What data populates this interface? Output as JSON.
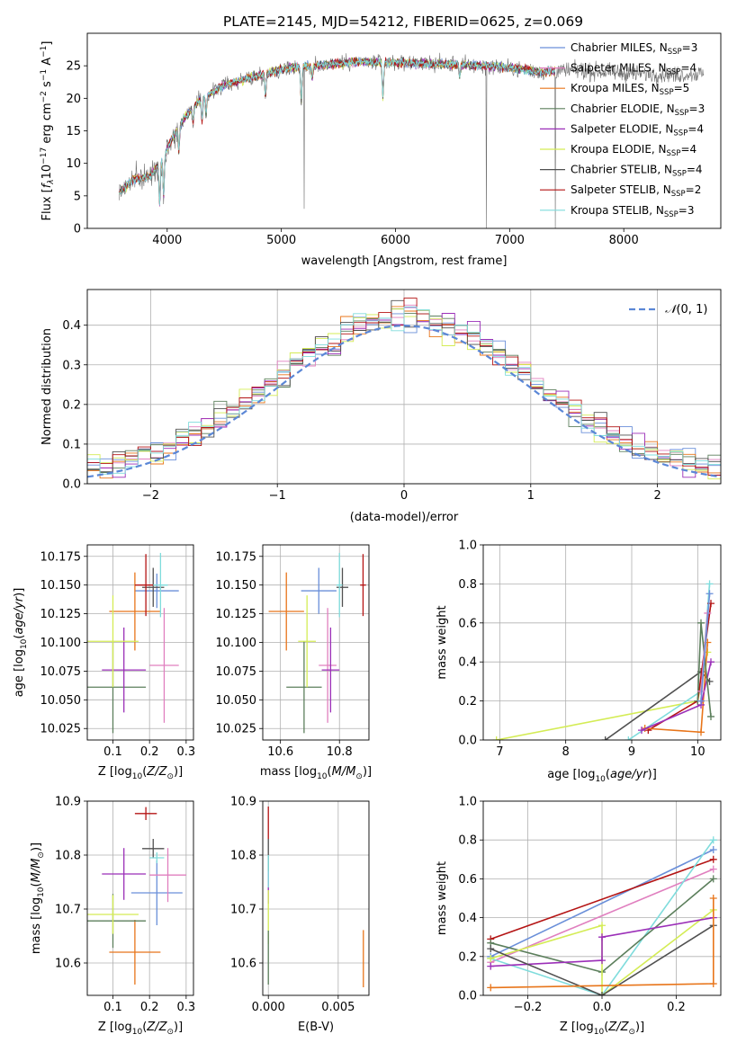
{
  "figure_title": "PLATE=2145, MJD=54212, FIBERID=0625, z=0.069",
  "colors": {
    "chabrier_miles": "#6a8fd9",
    "salpeter_miles": "#e07fbf",
    "kroupa_miles": "#e8751a",
    "chabrier_elodie": "#5c7f5c",
    "salpeter_elodie": "#9b2fb8",
    "kroupa_elodie": "#d4ec55",
    "chabrier_stelib": "#505050",
    "salpeter_stelib": "#b41414",
    "kroupa_stelib": "#7fdcdc",
    "gaussian": "#5b87d6",
    "data_spectrum": "#707070"
  },
  "chart_data": [
    {
      "id": "spectrum",
      "type": "line",
      "xlabel": "wavelength [Angstrom, rest frame]",
      "ylabel": "Flux [f_λ 10⁻¹⁷ erg cm⁻² s⁻¹ A⁻¹]",
      "xlim": [
        3300,
        8850
      ],
      "ylim": [
        0,
        30
      ],
      "xticks": [
        4000,
        5000,
        6000,
        7000,
        8000
      ],
      "yticks": [
        0,
        5,
        10,
        15,
        20,
        25
      ],
      "grid": false,
      "legend_position": "right",
      "legend": [
        {
          "key": "chabrier_miles",
          "base": "Chabrier MILES, N",
          "sub": "SSP",
          "tail": "=3"
        },
        {
          "key": "salpeter_miles",
          "base": "Salpeter MILES, N",
          "sub": "SSP",
          "tail": "=4"
        },
        {
          "key": "kroupa_miles",
          "base": "Kroupa MILES, N",
          "sub": "SSP",
          "tail": "=5"
        },
        {
          "key": "chabrier_elodie",
          "base": "Chabrier ELODIE, N",
          "sub": "SSP",
          "tail": "=3"
        },
        {
          "key": "salpeter_elodie",
          "base": "Salpeter ELODIE, N",
          "sub": "SSP",
          "tail": "=4"
        },
        {
          "key": "kroupa_elodie",
          "base": "Kroupa ELODIE, N",
          "sub": "SSP",
          "tail": "=4"
        },
        {
          "key": "chabrier_stelib",
          "base": "Chabrier STELIB, N",
          "sub": "SSP",
          "tail": "=4"
        },
        {
          "key": "salpeter_stelib",
          "base": "Salpeter STELIB, N",
          "sub": "SSP",
          "tail": "=2"
        },
        {
          "key": "kroupa_stelib",
          "base": "Kroupa STELIB, N",
          "sub": "SSP",
          "tail": "=3"
        }
      ],
      "continuum": [
        [
          3580,
          5.5
        ],
        [
          3700,
          7.5
        ],
        [
          3850,
          8.0
        ],
        [
          3950,
          10.5
        ],
        [
          4050,
          14.0
        ],
        [
          4150,
          17.0
        ],
        [
          4300,
          20.0
        ],
        [
          4500,
          22.0
        ],
        [
          4700,
          23.0
        ],
        [
          4900,
          24.0
        ],
        [
          5100,
          24.8
        ],
        [
          5300,
          25.0
        ],
        [
          5600,
          25.6
        ],
        [
          6000,
          25.5
        ],
        [
          6400,
          25.3
        ],
        [
          6800,
          25.0
        ],
        [
          7100,
          24.5
        ],
        [
          7300,
          24.0
        ],
        [
          7400,
          24.2
        ],
        [
          7600,
          24.2
        ],
        [
          7800,
          24.0
        ],
        [
          8100,
          23.8
        ],
        [
          8500,
          23.6
        ],
        [
          8700,
          23.8
        ]
      ],
      "model_extent": [
        3580,
        7400
      ],
      "absorption_lines": [
        [
          3934,
          7
        ],
        [
          3969,
          7
        ],
        [
          4102,
          4
        ],
        [
          4227,
          2.5
        ],
        [
          4305,
          4
        ],
        [
          4341,
          3
        ],
        [
          4861,
          4
        ],
        [
          5175,
          6
        ],
        [
          5270,
          2
        ],
        [
          5890,
          6
        ],
        [
          6563,
          2
        ]
      ],
      "spikes": [
        [
          5200,
          3
        ],
        [
          6795,
          0
        ],
        [
          7400,
          0
        ]
      ]
    },
    {
      "id": "residual_hist",
      "type": "histogram",
      "xlabel": "(data-model)/error",
      "ylabel": "Normed distribution",
      "xlim": [
        -2.5,
        2.5
      ],
      "ylim": [
        0,
        0.49
      ],
      "xticks": [
        -2,
        -1,
        0,
        1,
        2
      ],
      "yticks": [
        0,
        0.1,
        0.2,
        0.3,
        0.4
      ],
      "grid": true,
      "bin_width": 0.1,
      "legend_label": "N(0,1)",
      "legend_position": "top-right"
    },
    {
      "id": "age_vs_Z",
      "type": "errorbar",
      "xlabel": "Z [log10(Z/Z⊙)]",
      "ylabel": "age [log10(age/yr)]",
      "xlim": [
        0.03,
        0.32
      ],
      "ylim": [
        10.015,
        10.185
      ],
      "xticks": [
        0.1,
        0.2,
        0.3
      ],
      "yticks": [
        10.025,
        10.05,
        10.075,
        10.1,
        10.125,
        10.15,
        10.175
      ],
      "grid": true,
      "points": [
        {
          "key": "chabrier_miles",
          "x": 0.22,
          "xerr": 0.06,
          "y": 10.145,
          "yerr": 0.015
        },
        {
          "key": "salpeter_miles",
          "x": 0.24,
          "xerr": 0.04,
          "y": 10.08,
          "yerr": 0.05
        },
        {
          "key": "kroupa_miles",
          "x": 0.16,
          "xerr": 0.07,
          "y": 10.127,
          "yerr": 0.034
        },
        {
          "key": "chabrier_elodie",
          "x": 0.1,
          "xerr": 0.09,
          "y": 10.061,
          "yerr": 0.04
        },
        {
          "key": "salpeter_elodie",
          "x": 0.13,
          "xerr": 0.06,
          "y": 10.076,
          "yerr": 0.037
        },
        {
          "key": "kroupa_elodie",
          "x": 0.1,
          "xerr": 0.07,
          "y": 10.101,
          "yerr": 0.04
        },
        {
          "key": "chabrier_stelib",
          "x": 0.21,
          "xerr": 0.03,
          "y": 10.148,
          "yerr": 0.017
        },
        {
          "key": "salpeter_stelib",
          "x": 0.19,
          "xerr": 0.03,
          "y": 10.15,
          "yerr": 0.027
        },
        {
          "key": "kroupa_stelib",
          "x": 0.23,
          "xerr": 0.02,
          "y": 10.15,
          "yerr": 0.028
        }
      ]
    },
    {
      "id": "age_vs_mass",
      "type": "errorbar",
      "xlabel": "mass [log10(M/M⊙)]",
      "ylabel": "",
      "xlim": [
        10.54,
        10.9
      ],
      "ylim": [
        10.015,
        10.185
      ],
      "xticks": [
        10.6,
        10.8
      ],
      "yticks": [
        10.025,
        10.05,
        10.075,
        10.1,
        10.125,
        10.15,
        10.175
      ],
      "grid": true,
      "points": [
        {
          "key": "chabrier_miles",
          "x": 10.73,
          "xerr": 0.06,
          "y": 10.145,
          "yerr": 0.02
        },
        {
          "key": "salpeter_miles",
          "x": 10.76,
          "xerr": 0.03,
          "y": 10.08,
          "yerr": 0.05
        },
        {
          "key": "kroupa_miles",
          "x": 10.62,
          "xerr": 0.06,
          "y": 10.127,
          "yerr": 0.034
        },
        {
          "key": "chabrier_elodie",
          "x": 10.68,
          "xerr": 0.06,
          "y": 10.061,
          "yerr": 0.04
        },
        {
          "key": "salpeter_elodie",
          "x": 10.77,
          "xerr": 0.03,
          "y": 10.076,
          "yerr": 0.037
        },
        {
          "key": "kroupa_elodie",
          "x": 10.69,
          "xerr": 0.03,
          "y": 10.101,
          "yerr": 0.04
        },
        {
          "key": "chabrier_stelib",
          "x": 10.81,
          "xerr": 0.02,
          "y": 10.148,
          "yerr": 0.017
        },
        {
          "key": "salpeter_stelib",
          "x": 10.88,
          "xerr": 0.01,
          "y": 10.15,
          "yerr": 0.027
        },
        {
          "key": "kroupa_stelib",
          "x": 10.8,
          "xerr": 0.01,
          "y": 10.15,
          "yerr": 0.028
        }
      ]
    },
    {
      "id": "weight_vs_age",
      "type": "line",
      "xlabel": "age [log10(age/yr)]",
      "ylabel": "mass weight",
      "xlim": [
        6.75,
        10.35
      ],
      "ylim": [
        0,
        1
      ],
      "xticks": [
        7,
        8,
        9,
        10
      ],
      "yticks": [
        0,
        0.2,
        0.4,
        0.6,
        0.8,
        1.0
      ],
      "grid": true,
      "series": [
        {
          "key": "kroupa_elodie",
          "points": [
            [
              6.95,
              0.0
            ],
            [
              10.0,
              0.2
            ],
            [
              10.15,
              0.45
            ]
          ]
        },
        {
          "key": "chabrier_stelib",
          "points": [
            [
              8.6,
              0.0
            ],
            [
              10.05,
              0.35
            ],
            [
              10.18,
              0.3
            ]
          ]
        },
        {
          "key": "kroupa_stelib",
          "points": [
            [
              8.95,
              0.0
            ],
            [
              10.05,
              0.25
            ],
            [
              10.18,
              0.8
            ]
          ]
        },
        {
          "key": "salpeter_stelib",
          "points": [
            [
              9.25,
              0.05
            ],
            [
              10.0,
              0.2
            ],
            [
              10.2,
              0.7
            ]
          ]
        },
        {
          "key": "kroupa_miles",
          "points": [
            [
              9.2,
              0.06
            ],
            [
              10.05,
              0.04
            ],
            [
              10.15,
              0.5
            ]
          ]
        },
        {
          "key": "salpeter_elodie",
          "points": [
            [
              9.15,
              0.05
            ],
            [
              10.05,
              0.18
            ],
            [
              10.2,
              0.4
            ]
          ]
        },
        {
          "key": "chabrier_elodie",
          "points": [
            [
              10.0,
              0.2
            ],
            [
              10.05,
              0.6
            ],
            [
              10.2,
              0.12
            ]
          ]
        },
        {
          "key": "salpeter_miles",
          "points": [
            [
              10.05,
              0.25
            ],
            [
              10.15,
              0.65
            ]
          ]
        },
        {
          "key": "chabrier_miles",
          "points": [
            [
              10.05,
              0.2
            ],
            [
              10.18,
              0.75
            ]
          ]
        }
      ]
    },
    {
      "id": "mass_vs_Z",
      "type": "errorbar",
      "xlabel": "Z [log10(Z/Z⊙)]",
      "ylabel": "mass [log10(M/M⊙)]",
      "xlim": [
        0.03,
        0.32
      ],
      "ylim": [
        10.54,
        10.9
      ],
      "xticks": [
        0.1,
        0.2,
        0.3
      ],
      "yticks": [
        10.6,
        10.7,
        10.8,
        10.9
      ],
      "grid": true,
      "points": [
        {
          "key": "chabrier_miles",
          "x": 0.22,
          "xerr": 0.07,
          "y": 10.73,
          "yerr": 0.06
        },
        {
          "key": "salpeter_miles",
          "x": 0.25,
          "xerr": 0.05,
          "y": 10.763,
          "yerr": 0.05
        },
        {
          "key": "kroupa_miles",
          "x": 0.16,
          "xerr": 0.07,
          "y": 10.62,
          "yerr": 0.06
        },
        {
          "key": "chabrier_elodie",
          "x": 0.1,
          "xerr": 0.09,
          "y": 10.678,
          "yerr": 0.05
        },
        {
          "key": "salpeter_elodie",
          "x": 0.13,
          "xerr": 0.06,
          "y": 10.765,
          "yerr": 0.048
        },
        {
          "key": "kroupa_elodie",
          "x": 0.1,
          "xerr": 0.07,
          "y": 10.69,
          "yerr": 0.036
        },
        {
          "key": "chabrier_stelib",
          "x": 0.21,
          "xerr": 0.03,
          "y": 10.812,
          "yerr": 0.018
        },
        {
          "key": "salpeter_stelib",
          "x": 0.19,
          "xerr": 0.03,
          "y": 10.877,
          "yerr": 0.012
        },
        {
          "key": "kroupa_stelib",
          "x": 0.22,
          "xerr": 0.02,
          "y": 10.795,
          "yerr": 0.01
        }
      ]
    },
    {
      "id": "mass_vs_ebv",
      "type": "errorbar",
      "xlabel": "E(B-V)",
      "ylabel": "",
      "xlim": [
        -0.0004,
        0.0072
      ],
      "ylim": [
        10.54,
        10.9
      ],
      "xticks": [
        0.0,
        0.005
      ],
      "xtick_labels": [
        "0.000",
        "0.005"
      ],
      "yticks": [
        10.6,
        10.7,
        10.8,
        10.9
      ],
      "grid": true,
      "points": [
        {
          "key": "kroupa_miles",
          "x": 0.0068,
          "xerr": 0,
          "y": 10.608,
          "yerr": 0.053
        },
        {
          "key": "salpeter_stelib",
          "x": 0.0,
          "xerr": 0,
          "y": 10.86,
          "yerr": 0.03
        },
        {
          "key": "chabrier_stelib",
          "x": 0.0,
          "xerr": 0,
          "y": 10.8,
          "yerr": 0.03
        },
        {
          "key": "salpeter_elodie",
          "x": 0.0,
          "xerr": 0,
          "y": 10.74,
          "yerr": 0.03
        },
        {
          "key": "kroupa_elodie",
          "x": 0.0,
          "xerr": 0,
          "y": 10.685,
          "yerr": 0.05
        },
        {
          "key": "chabrier_elodie",
          "x": 0.0,
          "xerr": 0,
          "y": 10.61,
          "yerr": 0.05
        },
        {
          "key": "kroupa_stelib",
          "x": 0.0,
          "xerr": 0,
          "y": 10.77,
          "yerr": 0.03
        }
      ]
    },
    {
      "id": "weight_vs_Z",
      "type": "line",
      "xlabel": "Z [log10(Z/Z⊙)]",
      "ylabel": "mass weight",
      "xlim": [
        -0.32,
        0.32
      ],
      "ylim": [
        0,
        1
      ],
      "xticks": [
        -0.2,
        0.0,
        0.2
      ],
      "yticks": [
        0,
        0.2,
        0.4,
        0.6,
        0.8,
        1.0
      ],
      "grid": true,
      "series": [
        {
          "key": "chabrier_miles",
          "points": [
            [
              -0.3,
              0.2
            ],
            [
              0.3,
              0.75
            ]
          ]
        },
        {
          "key": "salpeter_miles",
          "points": [
            [
              -0.3,
              0.17
            ],
            [
              0.3,
              0.65
            ]
          ]
        },
        {
          "key": "salpeter_stelib",
          "points": [
            [
              -0.3,
              0.29
            ],
            [
              0.3,
              0.7
            ]
          ]
        },
        {
          "key": "kroupa_stelib",
          "points": [
            [
              -0.3,
              0.19
            ],
            [
              0.0,
              0.0
            ],
            [
              0.3,
              0.8
            ]
          ]
        },
        {
          "key": "chabrier_elodie",
          "points": [
            [
              -0.3,
              0.27
            ],
            [
              0.0,
              0.12
            ],
            [
              0.3,
              0.6
            ]
          ]
        },
        {
          "key": "kroupa_elodie",
          "points": [
            [
              -0.3,
              0.19
            ],
            [
              0.0,
              0.36
            ],
            [
              0.0,
              0.0
            ],
            [
              0.3,
              0.44
            ]
          ]
        },
        {
          "key": "salpeter_elodie",
          "points": [
            [
              -0.3,
              0.15
            ],
            [
              0.0,
              0.18
            ],
            [
              0.0,
              0.3
            ],
            [
              0.3,
              0.4
            ]
          ]
        },
        {
          "key": "chabrier_stelib",
          "points": [
            [
              -0.3,
              0.24
            ],
            [
              0.0,
              0.0
            ],
            [
              0.3,
              0.36
            ]
          ]
        },
        {
          "key": "kroupa_miles",
          "points": [
            [
              -0.3,
              0.04
            ],
            [
              0.3,
              0.06
            ],
            [
              0.3,
              0.5
            ]
          ]
        }
      ]
    }
  ]
}
